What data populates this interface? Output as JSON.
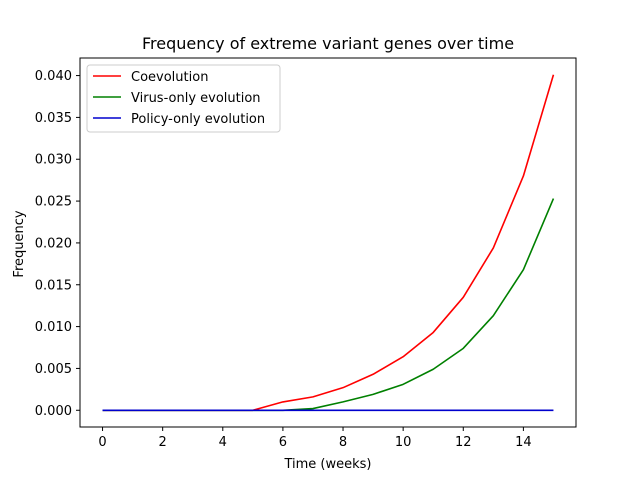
{
  "chart_data": {
    "type": "line",
    "title": "Frequency of extreme variant genes over time",
    "xlabel": "Time (weeks)",
    "ylabel": "Frequency",
    "x": [
      0,
      1,
      2,
      3,
      4,
      5,
      6,
      7,
      8,
      9,
      10,
      11,
      12,
      13,
      14,
      15
    ],
    "xlim": [
      -0.75,
      15.75
    ],
    "ylim": [
      -0.002,
      0.0421
    ],
    "xticks": [
      0,
      2,
      4,
      6,
      8,
      10,
      12,
      14
    ],
    "xtick_labels": [
      "0",
      "2",
      "4",
      "6",
      "8",
      "10",
      "12",
      "14"
    ],
    "yticks": [
      0.0,
      0.005,
      0.01,
      0.015,
      0.02,
      0.025,
      0.03,
      0.035,
      0.04
    ],
    "ytick_labels": [
      "0.000",
      "0.005",
      "0.010",
      "0.015",
      "0.020",
      "0.025",
      "0.030",
      "0.035",
      "0.040"
    ],
    "grid": false,
    "legend_position": "top-left",
    "series": [
      {
        "name": "Coevolution",
        "color": "#ff0000",
        "values": [
          0,
          0,
          0,
          0,
          0,
          0,
          0.001,
          0.0016,
          0.0027,
          0.0043,
          0.0064,
          0.0093,
          0.0135,
          0.0194,
          0.028,
          0.0401
        ]
      },
      {
        "name": "Virus-only evolution",
        "color": "#008000",
        "values": [
          0,
          0,
          0,
          0,
          0,
          0,
          0,
          0.0002,
          0.001,
          0.0019,
          0.0031,
          0.0049,
          0.0074,
          0.0113,
          0.0168,
          0.0253
        ]
      },
      {
        "name": "Policy-only evolution",
        "color": "#0000cd",
        "values": [
          0,
          0,
          0,
          0,
          0,
          0,
          0,
          0,
          0,
          0,
          0,
          0,
          0,
          0,
          0,
          0
        ]
      }
    ]
  }
}
